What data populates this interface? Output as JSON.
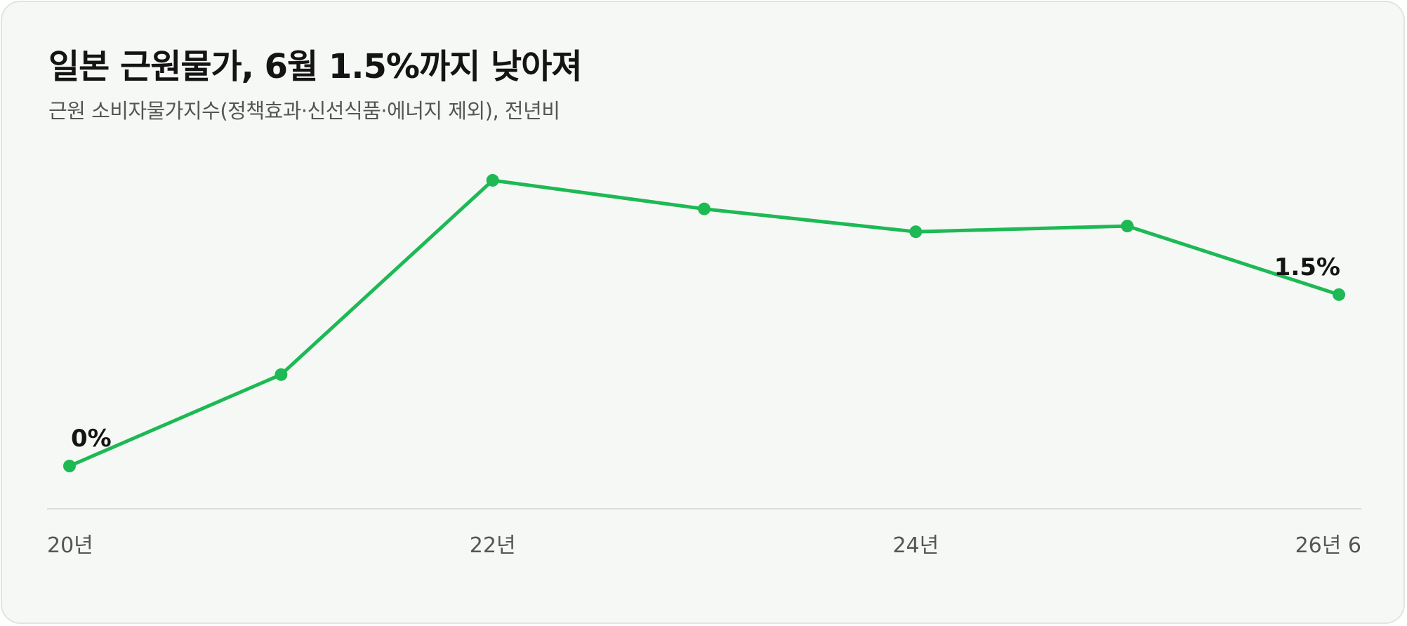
{
  "header": {
    "title": "일본 근원물가, 6월 1.5%까지 낮아져",
    "subtitle": "근원 소비자물가지수(정책효과·신선식품·에너지 제외), 전년비"
  },
  "colors": {
    "line": "#1db954",
    "background": "#f6f8f5",
    "axis": "#dcdedb",
    "tick_text": "#555555",
    "label_text": "#141414"
  },
  "chart_data": {
    "type": "line",
    "title": "일본 근원물가, 6월 1.5%까지 낮아져",
    "subtitle": "근원 소비자물가지수(정책효과·신선식품·에너지 제외), 전년비",
    "xlabel": "",
    "ylabel": "",
    "x_ticks": [
      "20년",
      "22년",
      "24년",
      "26년 6"
    ],
    "x_tick_positions": [
      0,
      2,
      4,
      6
    ],
    "grid": false,
    "legend": "none",
    "series": [
      {
        "x": [
          0,
          1,
          2,
          3,
          4,
          5,
          6
        ],
        "values": [
          0.0,
          0.8,
          2.5,
          2.25,
          2.05,
          2.1,
          1.5
        ]
      }
    ],
    "ylim": [
      -0.35,
      3.2
    ],
    "annotations": [
      {
        "point_index": 0,
        "text": "0%"
      },
      {
        "point_index": 6,
        "text": "1.5%"
      }
    ]
  }
}
